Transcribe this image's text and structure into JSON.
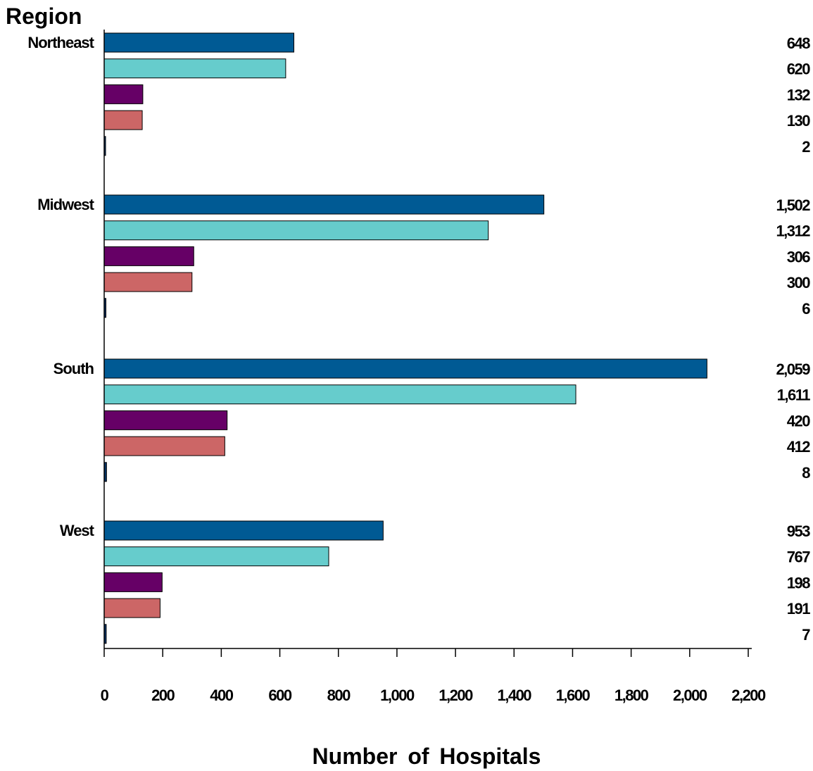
{
  "chart_data": {
    "type": "bar",
    "orientation": "horizontal",
    "ylabel": "Region",
    "xlabel": "Number of Hospitals",
    "xlim": [
      0,
      2200
    ],
    "x_ticks": [
      0,
      200,
      400,
      600,
      800,
      1000,
      1200,
      1400,
      1600,
      1800,
      2000,
      2200
    ],
    "x_tick_labels": [
      "0",
      "200",
      "400",
      "600",
      "800",
      "1,000",
      "1,200",
      "1,400",
      "1,600",
      "1,800",
      "2,000",
      "2,200"
    ],
    "grid": false,
    "legend": "none",
    "categories": [
      "Northeast",
      "Midwest",
      "South",
      "West"
    ],
    "series": [
      {
        "color": "#005a94",
        "values": [
          648,
          1502,
          2059,
          953
        ],
        "value_labels": [
          "648",
          "1,502",
          "2,059",
          "953"
        ]
      },
      {
        "color": "#66cccc",
        "values": [
          620,
          1312,
          1611,
          767
        ],
        "value_labels": [
          "620",
          "1,312",
          "1,611",
          "767"
        ]
      },
      {
        "color": "#660066",
        "values": [
          132,
          306,
          420,
          198
        ],
        "value_labels": [
          "132",
          "306",
          "420",
          "198"
        ]
      },
      {
        "color": "#cc6666",
        "values": [
          130,
          300,
          412,
          191
        ],
        "value_labels": [
          "130",
          "300",
          "412",
          "191"
        ]
      },
      {
        "color": "#003366",
        "values": [
          2,
          6,
          8,
          7
        ],
        "value_labels": [
          "2",
          "6",
          "8",
          "7"
        ]
      }
    ]
  }
}
